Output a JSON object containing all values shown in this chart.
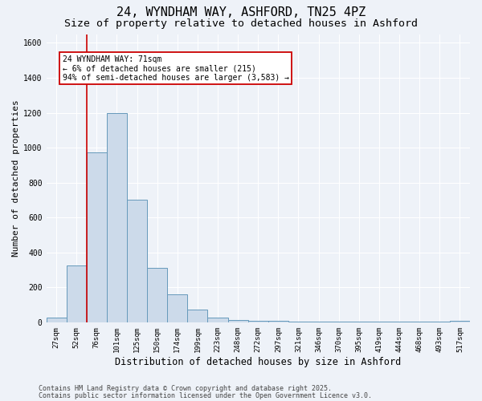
{
  "title_line1": "24, WYNDHAM WAY, ASHFORD, TN25 4PZ",
  "title_line2": "Size of property relative to detached houses in Ashford",
  "xlabel": "Distribution of detached houses by size in Ashford",
  "ylabel": "Number of detached properties",
  "bin_labels": [
    "27sqm",
    "52sqm",
    "76sqm",
    "101sqm",
    "125sqm",
    "150sqm",
    "174sqm",
    "199sqm",
    "223sqm",
    "248sqm",
    "272sqm",
    "297sqm",
    "321sqm",
    "346sqm",
    "370sqm",
    "395sqm",
    "419sqm",
    "444sqm",
    "468sqm",
    "493sqm",
    "517sqm"
  ],
  "bar_values": [
    25,
    325,
    975,
    1200,
    700,
    310,
    160,
    75,
    25,
    15,
    10,
    8,
    5,
    5,
    5,
    4,
    3,
    3,
    3,
    3,
    10
  ],
  "bar_color": "#ccdaea",
  "bar_edge_color": "#6699bb",
  "background_color": "#eef2f8",
  "grid_color": "#ffffff",
  "vline_color": "#cc0000",
  "vline_x_index": 2,
  "ylim": [
    0,
    1650
  ],
  "yticks": [
    0,
    200,
    400,
    600,
    800,
    1000,
    1200,
    1400,
    1600
  ],
  "annotation_text": "24 WYNDHAM WAY: 71sqm\n← 6% of detached houses are smaller (215)\n94% of semi-detached houses are larger (3,583) →",
  "footer_line1": "Contains HM Land Registry data © Crown copyright and database right 2025.",
  "footer_line2": "Contains public sector information licensed under the Open Government Licence v3.0.",
  "title_fontsize": 11,
  "subtitle_fontsize": 9.5,
  "tick_fontsize": 6.5,
  "ylabel_fontsize": 8,
  "xlabel_fontsize": 8.5,
  "annotation_fontsize": 7,
  "footer_fontsize": 6
}
